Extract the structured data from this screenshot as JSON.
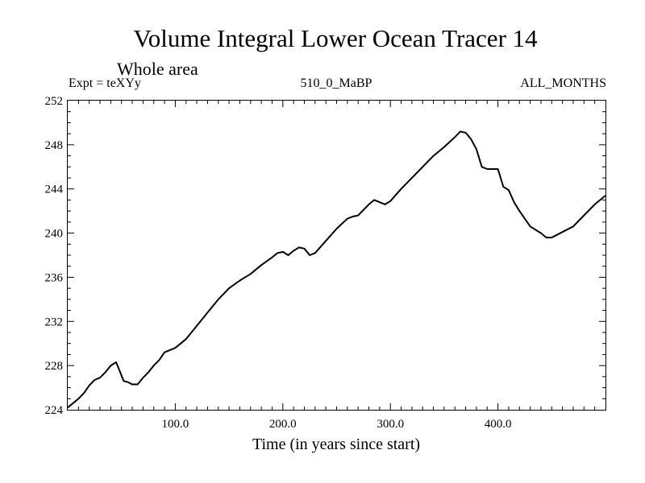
{
  "chart_data": {
    "type": "line",
    "title": "Volume Integral Lower Ocean Tracer 14",
    "subtitle": "Whole area",
    "left_label": "Expt = teXYy",
    "center_label": "510_0_MaBP",
    "right_label": "ALL_MONTHS",
    "xlabel": "Time (in years since start)",
    "ylabel": "",
    "xlim": [
      0,
      500
    ],
    "ylim": [
      224,
      252
    ],
    "x_ticks": [
      100,
      200,
      300,
      400
    ],
    "x_tick_labels": [
      "100.0",
      "200.0",
      "300.0",
      "400.0"
    ],
    "y_ticks": [
      224,
      228,
      232,
      236,
      240,
      244,
      248,
      252
    ],
    "y_tick_labels": [
      "224",
      "228",
      "232",
      "236",
      "240",
      "244",
      "248",
      "252"
    ],
    "grid": false,
    "series": [
      {
        "x": [
          0,
          5,
          10,
          15,
          20,
          25,
          30,
          35,
          40,
          45,
          48,
          52,
          56,
          60,
          65,
          70,
          75,
          80,
          85,
          90,
          95,
          100,
          110,
          120,
          130,
          140,
          150,
          160,
          170,
          180,
          190,
          195,
          200,
          205,
          210,
          215,
          220,
          225,
          230,
          240,
          250,
          260,
          265,
          270,
          280,
          285,
          290,
          295,
          300,
          310,
          320,
          330,
          340,
          350,
          360,
          365,
          370,
          375,
          380,
          385,
          390,
          400,
          405,
          410,
          415,
          420,
          430,
          440,
          445,
          450,
          460,
          470,
          480,
          490,
          500
        ],
        "y": [
          224.2,
          224.6,
          225.0,
          225.5,
          226.2,
          226.7,
          226.9,
          227.4,
          228.0,
          228.3,
          227.6,
          226.6,
          226.5,
          226.3,
          226.3,
          226.9,
          227.4,
          228.0,
          228.5,
          229.2,
          229.4,
          229.6,
          230.4,
          231.6,
          232.8,
          234.0,
          235.0,
          235.7,
          236.3,
          237.1,
          237.8,
          238.2,
          238.3,
          238.0,
          238.4,
          238.7,
          238.6,
          238.0,
          238.2,
          239.3,
          240.4,
          241.3,
          241.5,
          241.6,
          242.6,
          243.0,
          242.8,
          242.6,
          242.9,
          244.0,
          245.0,
          246.0,
          247.0,
          247.8,
          248.7,
          249.2,
          249.1,
          248.5,
          247.6,
          246.0,
          245.8,
          245.8,
          244.2,
          243.9,
          242.8,
          242.0,
          240.6,
          240.0,
          239.6,
          239.6,
          240.1,
          240.6,
          241.6,
          242.6,
          243.4
        ]
      }
    ]
  }
}
